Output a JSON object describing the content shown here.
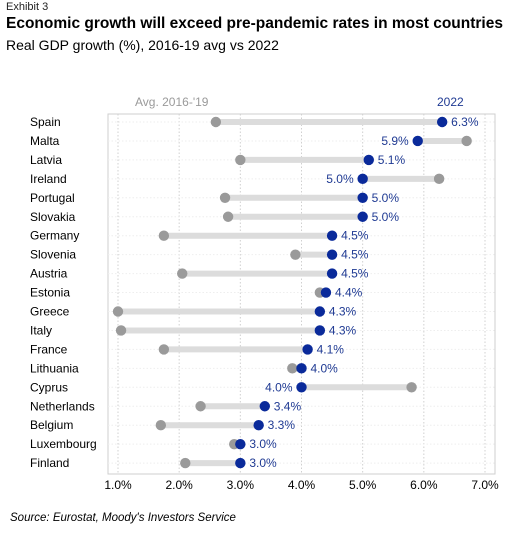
{
  "header": {
    "exhibit": "Exhibit 3",
    "title": "Economic growth will exceed pre-pandemic rates in most countries",
    "subtitle": "Real GDP growth (%), 2016-19 avg vs 2022"
  },
  "source": "Source: Eurostat, Moody's Investors Service",
  "colors": {
    "avg": "#9a9a9a",
    "y2022": "#0a2a9a",
    "connector": "#dcdcdc",
    "label": "#1f3a93"
  },
  "chart_data": {
    "type": "dumbbell",
    "series": [
      {
        "name": "Avg. 2016-'19",
        "key": "avg"
      },
      {
        "name": "2022",
        "key": "y2022"
      }
    ],
    "xlim": [
      0.9,
      7.1
    ],
    "xticks": [
      1,
      2,
      3,
      4,
      5,
      6,
      7
    ],
    "xtick_labels": [
      "1.0%",
      "2.0%",
      "3.0%",
      "4.0%",
      "5.0%",
      "6.0%",
      "7.0%"
    ],
    "rows": [
      {
        "country": "Spain",
        "avg": 2.6,
        "y2022": 6.3,
        "label": "6.3%"
      },
      {
        "country": "Malta",
        "avg": 6.7,
        "y2022": 5.9,
        "label": "5.9%"
      },
      {
        "country": "Latvia",
        "avg": 3.0,
        "y2022": 5.1,
        "label": "5.1%"
      },
      {
        "country": "Ireland",
        "avg": 6.25,
        "y2022": 5.0,
        "label": "5.0%"
      },
      {
        "country": "Portugal",
        "avg": 2.75,
        "y2022": 5.0,
        "label": "5.0%"
      },
      {
        "country": "Slovakia",
        "avg": 2.8,
        "y2022": 5.0,
        "label": "5.0%"
      },
      {
        "country": "Germany",
        "avg": 1.75,
        "y2022": 4.5,
        "label": "4.5%"
      },
      {
        "country": "Slovenia",
        "avg": 3.9,
        "y2022": 4.5,
        "label": "4.5%"
      },
      {
        "country": "Austria",
        "avg": 2.05,
        "y2022": 4.5,
        "label": "4.5%"
      },
      {
        "country": "Estonia",
        "avg": 4.3,
        "y2022": 4.4,
        "label": "4.4%"
      },
      {
        "country": "Greece",
        "avg": 1.0,
        "y2022": 4.3,
        "label": "4.3%"
      },
      {
        "country": "Italy",
        "avg": 1.05,
        "y2022": 4.3,
        "label": "4.3%"
      },
      {
        "country": "France",
        "avg": 1.75,
        "y2022": 4.1,
        "label": "4.1%"
      },
      {
        "country": "Lithuania",
        "avg": 3.85,
        "y2022": 4.0,
        "label": "4.0%"
      },
      {
        "country": "Cyprus",
        "avg": 5.8,
        "y2022": 4.0,
        "label": "4.0%"
      },
      {
        "country": "Netherlands",
        "avg": 2.35,
        "y2022": 3.4,
        "label": "3.4%"
      },
      {
        "country": "Belgium",
        "avg": 1.7,
        "y2022": 3.3,
        "label": "3.3%"
      },
      {
        "country": "Luxembourg",
        "avg": 2.9,
        "y2022": 3.0,
        "label": "3.0%"
      },
      {
        "country": "Finland",
        "avg": 2.1,
        "y2022": 3.0,
        "label": "3.0%"
      }
    ]
  }
}
